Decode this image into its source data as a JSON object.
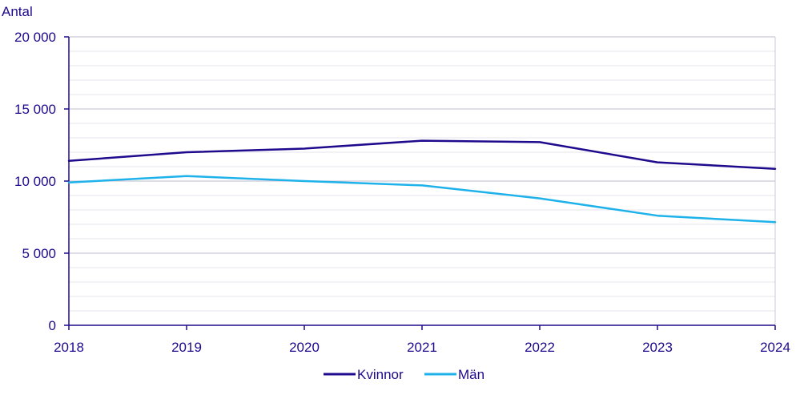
{
  "chart_data": {
    "type": "line",
    "ylabel": "Antal",
    "x": [
      "2018",
      "2019",
      "2020",
      "2021",
      "2022",
      "2023",
      "2024"
    ],
    "ylim": [
      0,
      20000
    ],
    "yticks": [
      0,
      5000,
      10000,
      15000,
      20000
    ],
    "ytick_labels": [
      "0",
      "5 000",
      "10 000",
      "15 000",
      "20 000"
    ],
    "grid": true,
    "legend_position": "bottom-center",
    "series": [
      {
        "name": "Kvinnor",
        "color": "#1e0a8c",
        "values": [
          11400,
          12000,
          12250,
          12800,
          12700,
          11300,
          10850
        ]
      },
      {
        "name": "Män",
        "color": "#1fb2ea",
        "values": [
          9900,
          10350,
          10000,
          9700,
          8800,
          7600,
          7150
        ]
      }
    ]
  }
}
